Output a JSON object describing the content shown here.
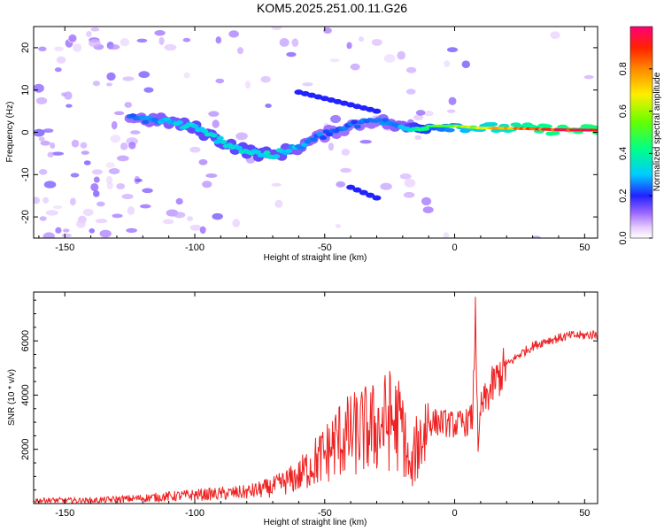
{
  "title": "KOM5.2025.251.00.11.G26",
  "chart_data": [
    {
      "type": "heatmap",
      "title": "KOM5.2025.251.00.11.G26",
      "xlabel": "Height of straight line (km)",
      "ylabel": "Frequency (Hz)",
      "xlim": [
        -162,
        55
      ],
      "ylim": [
        -25,
        25
      ],
      "xticks": [
        -150,
        -100,
        -50,
        0,
        50
      ],
      "yticks": [
        -20,
        -10,
        0,
        10,
        20
      ],
      "colorbar": {
        "label": "Normalized spectral amplitude",
        "range": [
          0,
          1
        ],
        "ticks": [
          "0.0",
          "0.2",
          "0.4",
          "0.6",
          "0.8"
        ],
        "tick_values": [
          0.0,
          0.2,
          0.4,
          0.6,
          0.8
        ]
      },
      "ridge": {
        "x": [
          -125,
          -110,
          -100,
          -90,
          -80,
          -70,
          -60,
          -50,
          -40,
          -30,
          -20,
          -10,
          0,
          10,
          20,
          30,
          40,
          55
        ],
        "freq": [
          3.5,
          2.5,
          1.0,
          -2.0,
          -4.5,
          -5.5,
          -3.5,
          -0.5,
          1.5,
          3.0,
          1.0,
          1.5,
          1.5,
          1.0,
          1.0,
          0.8,
          0.6,
          0.5
        ],
        "amplitude": [
          0.25,
          0.3,
          0.35,
          0.35,
          0.35,
          0.35,
          0.3,
          0.25,
          0.25,
          0.25,
          0.3,
          0.5,
          0.6,
          0.7,
          0.8,
          0.9,
          0.95,
          0.97
        ]
      },
      "secondary_features": [
        {
          "x_range": [
            -60,
            -30
          ],
          "freq": 9.5,
          "amplitude": 0.2
        },
        {
          "x_range": [
            -40,
            -28
          ],
          "freq": -13,
          "amplitude": 0.2
        }
      ]
    },
    {
      "type": "line",
      "xlabel": "Height of straight line (km)",
      "ylabel": "SNR (10 * v/v)",
      "xlim": [
        -162,
        55
      ],
      "ylim": [
        0,
        7800
      ],
      "xticks": [
        -150,
        -100,
        -50,
        0,
        50
      ],
      "yticks": [
        2000,
        4000,
        6000
      ],
      "color": "#ee2222",
      "series": [
        {
          "name": "SNR",
          "x": [
            -162,
            -140,
            -120,
            -110,
            -100,
            -90,
            -80,
            -70,
            -60,
            -55,
            -50,
            -45,
            -40,
            -35,
            -30,
            -25,
            -20,
            -17,
            -15,
            -10,
            -5,
            0,
            5,
            7,
            8,
            9,
            10,
            15,
            20,
            25,
            30,
            35,
            40,
            45,
            50,
            55
          ],
          "y": [
            120,
            110,
            200,
            260,
            320,
            360,
            420,
            600,
            1000,
            1450,
            1800,
            2350,
            2500,
            2700,
            2800,
            3100,
            2800,
            1000,
            2000,
            3000,
            3000,
            2900,
            3000,
            3200,
            7600,
            1700,
            3500,
            4400,
            5100,
            5500,
            5800,
            6000,
            6100,
            6200,
            6200,
            6250
          ]
        }
      ]
    }
  ]
}
